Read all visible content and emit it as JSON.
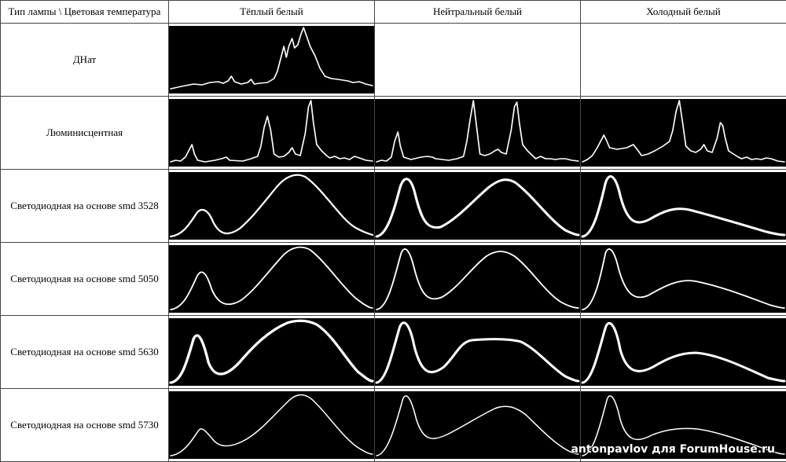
{
  "header": {
    "corner": "Тип лампы \\ Цветовая температура",
    "columns": [
      "Тёплый белый",
      "Нейтральный белый",
      "Холодный белый"
    ]
  },
  "rows": [
    {
      "label": "ДНат",
      "cells": [
        "spectrum",
        "",
        ""
      ]
    },
    {
      "label": "Люминисцентная",
      "cells": [
        "spectrum",
        "spectrum",
        "spectrum"
      ]
    },
    {
      "label": "Светодиодная на основе smd 3528",
      "cells": [
        "spectrum",
        "spectrum",
        "spectrum"
      ]
    },
    {
      "label": "Светодиодная на основе smd 5050",
      "cells": [
        "spectrum",
        "spectrum",
        "spectrum"
      ]
    },
    {
      "label": "Светодиодная на основе smd 5630",
      "cells": [
        "spectrum",
        "spectrum",
        "spectrum"
      ]
    },
    {
      "label": "Светодиодная на основе smd 5730",
      "cells": [
        "spectrum",
        "spectrum",
        "spectrum"
      ]
    }
  ],
  "watermark": "antonpavlov для ForumHouse.ru",
  "colors": {
    "plot_background": "#000000",
    "curve": "#ffffff",
    "grid_lines": "#444444"
  }
}
